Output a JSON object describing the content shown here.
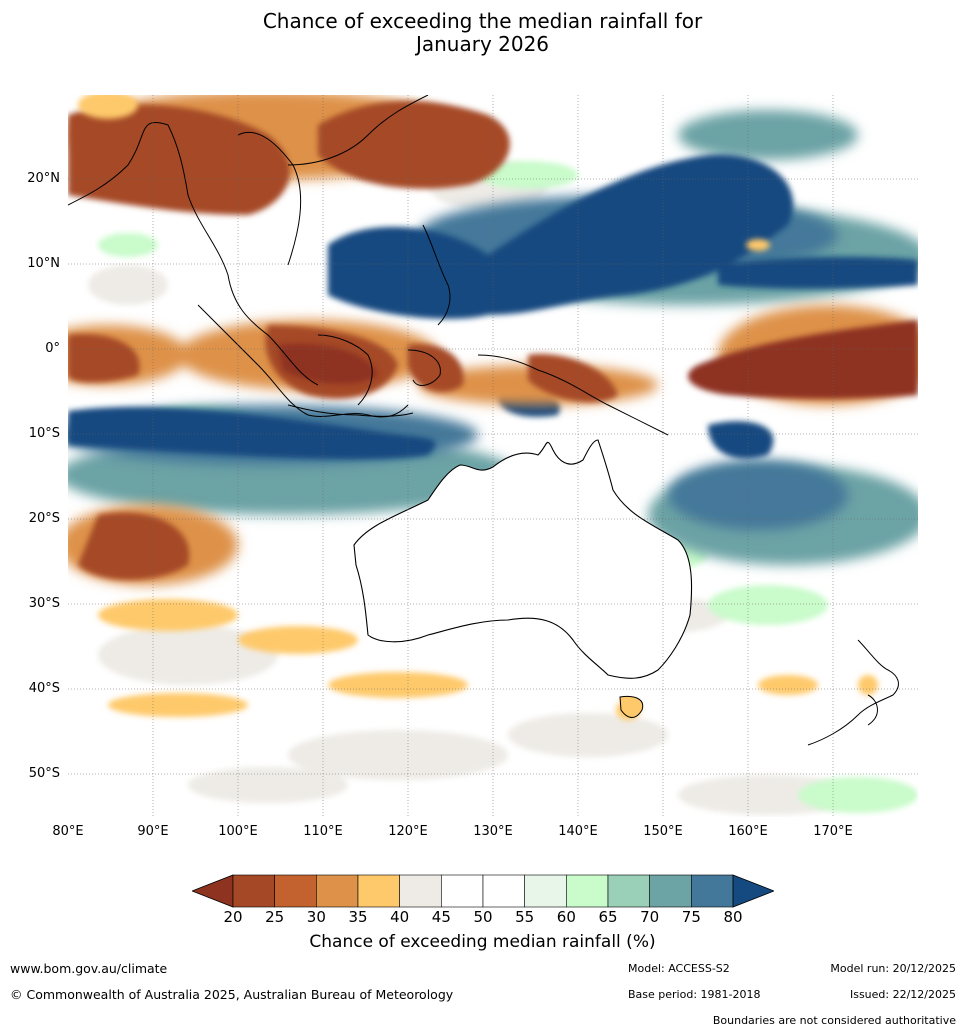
{
  "title_line1": "Chance of exceeding the median rainfall for",
  "title_line2": "January 2026",
  "lat_ticks": [
    "20°N",
    "10°N",
    "0°",
    "10°S",
    "20°S",
    "30°S",
    "40°S",
    "50°S"
  ],
  "lon_ticks": [
    "80°E",
    "90°E",
    "100°E",
    "110°E",
    "120°E",
    "130°E",
    "140°E",
    "150°E",
    "160°E",
    "170°E"
  ],
  "colorbar": {
    "labels": [
      "20",
      "25",
      "30",
      "35",
      "40",
      "45",
      "50",
      "55",
      "60",
      "65",
      "70",
      "75",
      "80"
    ],
    "title": "Chance of exceeding median rainfall (%)",
    "colors": [
      "#a54826",
      "#c4622f",
      "#de9249",
      "#fec96a",
      "#eeebe6",
      "#ffffff",
      "#ffffff",
      "#e8f6e9",
      "#c9fbcb",
      "#9acfb8",
      "#6ca3a5",
      "#44789a"
    ],
    "under_color": "#8e3320",
    "over_color": "#144a80"
  },
  "footer": {
    "website": "www.bom.gov.au/climate",
    "copyright": "© Commonwealth of Australia 2025, Australian Bureau of Meteorology",
    "model": "Model: ACCESS-S2",
    "model_run": "Model run: 20/12/2025",
    "base_period": "Base period: 1981-2018",
    "issued": "Issued: 22/12/2025",
    "boundaries": "Boundaries are not considered authoritative"
  }
}
